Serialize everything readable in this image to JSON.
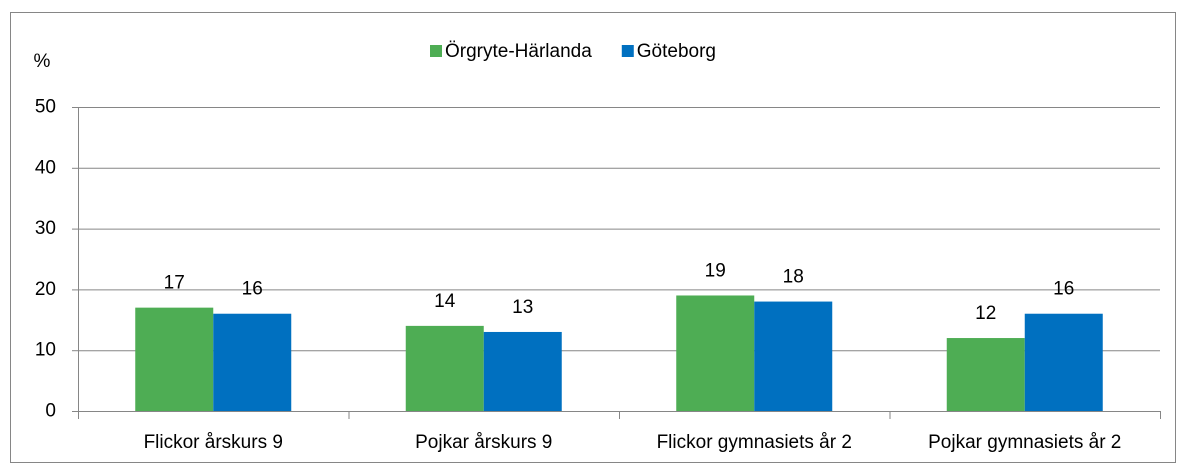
{
  "chart_data": {
    "type": "bar",
    "ylabel": "%",
    "categories": [
      "Flickor årskurs 9",
      "Pojkar årskurs 9",
      "Flickor gymnasiets år 2",
      "Pojkar gymnasiets år 2"
    ],
    "series": [
      {
        "name": "Örgryte-Härlanda",
        "color": "#4ead54",
        "values": [
          17,
          14,
          19,
          12
        ]
      },
      {
        "name": "Göteborg",
        "color": "#0070c0",
        "values": [
          16,
          13,
          18,
          16
        ]
      }
    ],
    "ylim": [
      0,
      50
    ],
    "yticks": [
      0,
      10,
      20,
      30,
      40,
      50
    ],
    "grid": true,
    "legend": "top"
  }
}
